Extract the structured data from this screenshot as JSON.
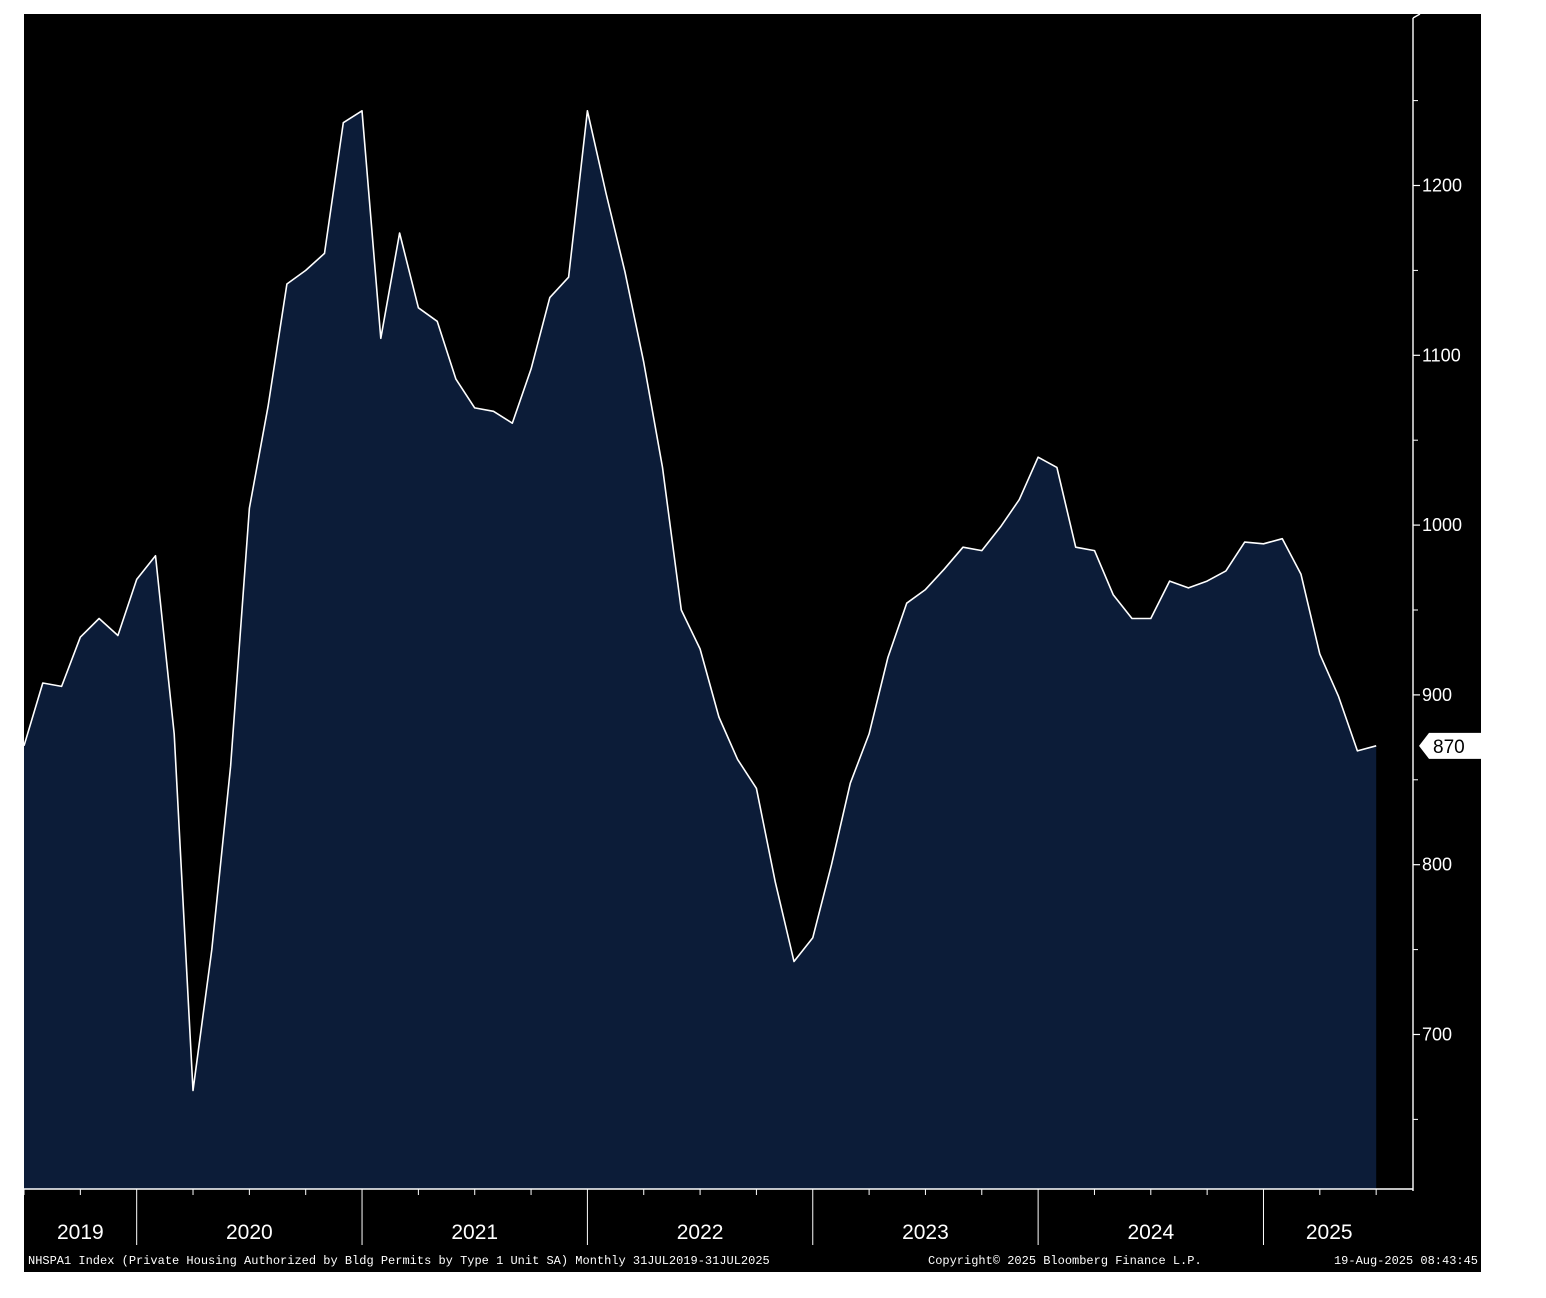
{
  "chart_data": {
    "type": "area",
    "y_axis": {
      "side": "right",
      "ticks": [
        700,
        800,
        900,
        1000,
        1100,
        1200
      ],
      "minor_ticks": [
        650,
        750,
        850,
        950,
        1050,
        1150,
        1250
      ],
      "range": [
        609,
        1301
      ]
    },
    "x_axis": {
      "start": "2019-07",
      "end": "2025-07",
      "year_labels": [
        "2019",
        "2020",
        "2021",
        "2022",
        "2023",
        "2024",
        "2025"
      ]
    },
    "series": [
      {
        "values": [
          870,
          907,
          905,
          934,
          945,
          935,
          968,
          982,
          877,
          667,
          750,
          858,
          1010,
          1070,
          1142,
          1150,
          1160,
          1237,
          1244,
          1110,
          1172,
          1128,
          1120,
          1086,
          1069,
          1067,
          1060,
          1092,
          1134,
          1146,
          1244,
          1195,
          1149,
          1096,
          1034,
          950,
          927,
          887,
          862,
          845,
          790,
          743,
          757,
          800,
          848,
          877,
          922,
          954,
          962,
          974,
          987,
          985,
          999,
          1015,
          1040,
          1034,
          987,
          985,
          959,
          945,
          945,
          967,
          963,
          967,
          973,
          990,
          989,
          992,
          971,
          924,
          899,
          867,
          870
        ]
      }
    ],
    "last_value_label": "870",
    "colors": {
      "background": "#000000",
      "area_fill": "#0c1c38",
      "line": "#ffffff",
      "axis": "#ffffff",
      "label_box": "#ffffff",
      "label_text": "#000000"
    }
  },
  "footer": {
    "description": "NHSPA1 Index (Private Housing Authorized by Bldg Permits by Type 1 Unit SA)  Monthly 31JUL2019-31JUL2025",
    "copyright": "Copyright© 2025 Bloomberg Finance L.P.",
    "timestamp": "19-Aug-2025 08:43:45"
  }
}
